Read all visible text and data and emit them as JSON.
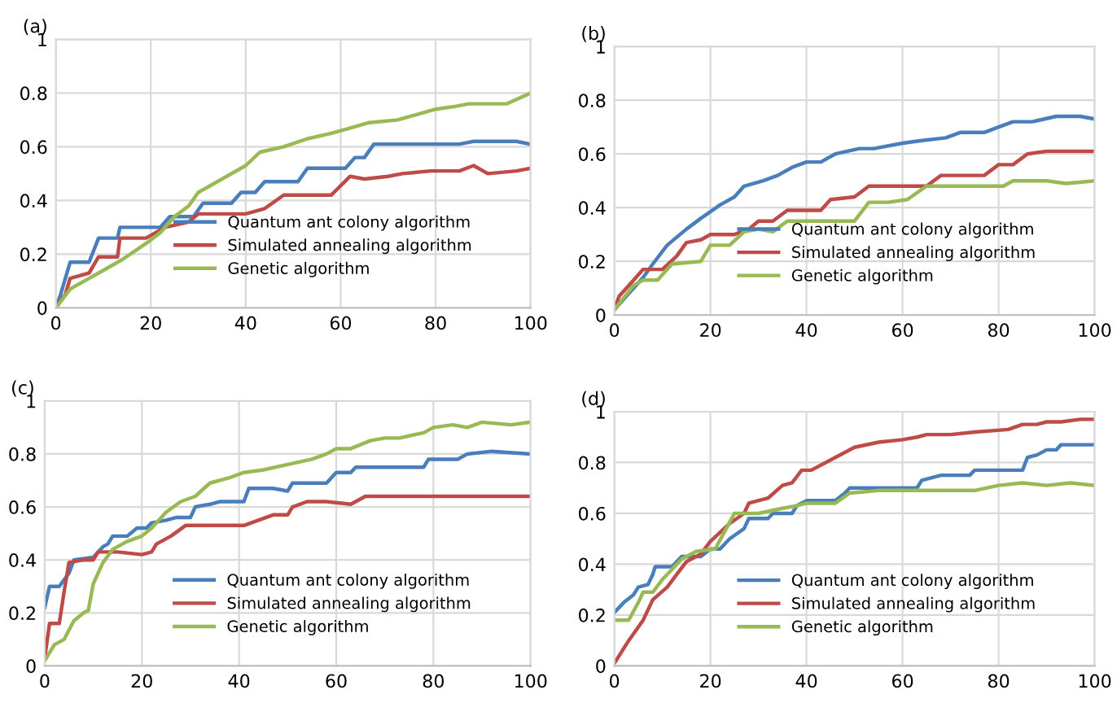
{
  "chart_data": [
    {
      "type": "line",
      "title": "(a)",
      "xlim": [
        0,
        100
      ],
      "ylim": [
        0,
        1
      ],
      "xticks": [
        0,
        20,
        40,
        60,
        80,
        100
      ],
      "yticks": [
        0,
        0.2,
        0.4,
        0.6,
        0.8,
        1
      ],
      "grid": true,
      "legend": "bottom right",
      "series": [
        {
          "name": "Quantum ant colony algorithm",
          "color": "#4a7ebb",
          "x": [
            0,
            1,
            3,
            7,
            9,
            13,
            13.5,
            22,
            24,
            29,
            31,
            37,
            39,
            42,
            44,
            51,
            53,
            58,
            61,
            63,
            65,
            67,
            80,
            85,
            88,
            97,
            100
          ],
          "values": [
            0,
            0.05,
            0.17,
            0.17,
            0.26,
            0.26,
            0.3,
            0.3,
            0.34,
            0.34,
            0.39,
            0.39,
            0.43,
            0.43,
            0.47,
            0.47,
            0.52,
            0.52,
            0.52,
            0.56,
            0.56,
            0.61,
            0.61,
            0.61,
            0.62,
            0.62,
            0.61
          ]
        },
        {
          "name": "Simulated annealing algorithm",
          "color": "#be4b48",
          "x": [
            0,
            2,
            3,
            5,
            7,
            9,
            13,
            13.5,
            19,
            23,
            28,
            30,
            34,
            40,
            44,
            48,
            58,
            62,
            65,
            70,
            73,
            79,
            85,
            88,
            91,
            97,
            100
          ],
          "values": [
            0,
            0.05,
            0.11,
            0.12,
            0.13,
            0.19,
            0.19,
            0.26,
            0.26,
            0.3,
            0.32,
            0.35,
            0.35,
            0.35,
            0.37,
            0.42,
            0.42,
            0.49,
            0.48,
            0.49,
            0.5,
            0.51,
            0.51,
            0.53,
            0.5,
            0.51,
            0.52
          ]
        },
        {
          "name": "Genetic algorithm",
          "color": "#98b954",
          "x": [
            0,
            3,
            7,
            10,
            14,
            19,
            22,
            25,
            28,
            30,
            35,
            40,
            43,
            48,
            53,
            58,
            62,
            66,
            72,
            76,
            80,
            84,
            87,
            95,
            100
          ],
          "values": [
            0,
            0.07,
            0.11,
            0.14,
            0.18,
            0.24,
            0.28,
            0.34,
            0.38,
            0.43,
            0.48,
            0.53,
            0.58,
            0.6,
            0.63,
            0.65,
            0.67,
            0.69,
            0.7,
            0.72,
            0.74,
            0.75,
            0.76,
            0.76,
            0.8
          ]
        }
      ]
    },
    {
      "type": "line",
      "title": "(b)",
      "xlim": [
        0,
        100
      ],
      "ylim": [
        0,
        1
      ],
      "xticks": [
        0,
        20,
        40,
        60,
        80,
        100
      ],
      "yticks": [
        0,
        0.2,
        0.4,
        0.6,
        0.8,
        1
      ],
      "grid": true,
      "legend": "bottom right",
      "series": [
        {
          "name": "Quantum ant colony algorithm",
          "color": "#4a7ebb",
          "x": [
            0,
            3,
            6,
            8,
            11,
            15,
            18,
            22,
            25,
            27,
            31,
            34,
            37,
            40,
            43,
            46,
            51,
            54,
            60,
            64,
            69,
            72,
            77,
            80,
            83,
            87,
            92,
            97,
            100
          ],
          "values": [
            0.02,
            0.08,
            0.14,
            0.19,
            0.26,
            0.32,
            0.36,
            0.41,
            0.44,
            0.48,
            0.5,
            0.52,
            0.55,
            0.57,
            0.57,
            0.6,
            0.62,
            0.62,
            0.64,
            0.65,
            0.66,
            0.68,
            0.68,
            0.7,
            0.72,
            0.72,
            0.74,
            0.74,
            0.73
          ]
        },
        {
          "name": "Simulated annealing algorithm",
          "color": "#be4b48",
          "x": [
            0,
            1,
            3,
            6,
            10,
            13,
            15,
            18,
            20,
            25,
            28,
            30,
            33,
            36,
            43,
            45,
            50,
            53,
            65,
            68,
            77,
            80,
            83,
            86,
            90,
            100
          ],
          "values": [
            0.02,
            0.07,
            0.11,
            0.17,
            0.17,
            0.22,
            0.27,
            0.28,
            0.3,
            0.3,
            0.32,
            0.35,
            0.35,
            0.39,
            0.39,
            0.43,
            0.44,
            0.48,
            0.48,
            0.52,
            0.52,
            0.56,
            0.56,
            0.6,
            0.61,
            0.61
          ]
        },
        {
          "name": "Genetic algorithm",
          "color": "#98b954",
          "x": [
            0,
            4,
            6,
            9,
            12,
            18,
            20,
            24,
            27,
            30,
            33,
            36,
            45,
            50,
            53,
            57,
            61,
            65,
            78,
            81,
            83,
            90,
            94,
            100
          ],
          "values": [
            0.02,
            0.11,
            0.13,
            0.13,
            0.19,
            0.2,
            0.26,
            0.26,
            0.31,
            0.32,
            0.31,
            0.35,
            0.35,
            0.35,
            0.42,
            0.42,
            0.43,
            0.48,
            0.48,
            0.48,
            0.5,
            0.5,
            0.49,
            0.5
          ]
        }
      ]
    },
    {
      "type": "line",
      "title": "(c)",
      "xlim": [
        0,
        100
      ],
      "ylim": [
        0,
        1
      ],
      "xticks": [
        0,
        20,
        40,
        60,
        80,
        100
      ],
      "yticks": [
        0,
        0.2,
        0.4,
        0.6,
        0.8,
        1
      ],
      "grid": true,
      "legend": "bottom right",
      "series": [
        {
          "name": "Quantum ant colony algorithm",
          "color": "#4a7ebb",
          "x": [
            0,
            1,
            3,
            5,
            6,
            10,
            12,
            13,
            14,
            17,
            19,
            21,
            22,
            25,
            27,
            30,
            31,
            34,
            36,
            41,
            42,
            47,
            50,
            51,
            58,
            60,
            63,
            64,
            70,
            78,
            79,
            85,
            87,
            92,
            100
          ],
          "values": [
            0.22,
            0.3,
            0.3,
            0.35,
            0.4,
            0.41,
            0.45,
            0.46,
            0.49,
            0.49,
            0.52,
            0.52,
            0.54,
            0.55,
            0.56,
            0.56,
            0.6,
            0.61,
            0.62,
            0.62,
            0.67,
            0.67,
            0.66,
            0.69,
            0.69,
            0.73,
            0.73,
            0.75,
            0.75,
            0.75,
            0.78,
            0.78,
            0.8,
            0.81,
            0.8
          ]
        },
        {
          "name": "Simulated annealing algorithm",
          "color": "#be4b48",
          "x": [
            0,
            1,
            3,
            4,
            5,
            8,
            10,
            11,
            15,
            20,
            22,
            23,
            26,
            29,
            35,
            41,
            44,
            47,
            50,
            51,
            54,
            58,
            63,
            66,
            80,
            100
          ],
          "values": [
            0.03,
            0.16,
            0.16,
            0.28,
            0.39,
            0.4,
            0.4,
            0.43,
            0.43,
            0.42,
            0.43,
            0.46,
            0.49,
            0.53,
            0.53,
            0.53,
            0.55,
            0.57,
            0.57,
            0.6,
            0.62,
            0.62,
            0.61,
            0.64,
            0.64,
            0.64
          ]
        },
        {
          "name": "Genetic algorithm",
          "color": "#98b954",
          "x": [
            0,
            2,
            4,
            6,
            8,
            9,
            10,
            12,
            14,
            17,
            20,
            22,
            25,
            28,
            31,
            34,
            38,
            41,
            45,
            50,
            55,
            58,
            60,
            63,
            67,
            70,
            73,
            78,
            80,
            84,
            87,
            90,
            96,
            100
          ],
          "values": [
            0.02,
            0.08,
            0.1,
            0.17,
            0.2,
            0.21,
            0.31,
            0.39,
            0.44,
            0.47,
            0.49,
            0.52,
            0.58,
            0.62,
            0.64,
            0.69,
            0.71,
            0.73,
            0.74,
            0.76,
            0.78,
            0.8,
            0.82,
            0.82,
            0.85,
            0.86,
            0.86,
            0.88,
            0.9,
            0.91,
            0.9,
            0.92,
            0.91,
            0.92
          ]
        }
      ]
    },
    {
      "type": "line",
      "title": "(d)",
      "xlim": [
        0,
        100
      ],
      "ylim": [
        0,
        1
      ],
      "xticks": [
        0,
        20,
        40,
        60,
        80,
        100
      ],
      "yticks": [
        0,
        0.2,
        0.4,
        0.6,
        0.8,
        1
      ],
      "grid": true,
      "legend": "bottom right",
      "series": [
        {
          "name": "Quantum ant colony algorithm",
          "color": "#4a7ebb",
          "x": [
            0,
            2,
            4,
            5,
            7,
            8,
            8.5,
            12,
            14,
            18,
            20,
            22,
            24,
            27,
            28,
            32,
            33,
            37,
            38,
            40,
            46,
            48,
            49,
            53,
            63,
            64,
            68,
            74,
            75,
            85,
            86,
            88,
            90,
            92,
            93,
            100
          ],
          "values": [
            0.21,
            0.25,
            0.28,
            0.31,
            0.32,
            0.36,
            0.39,
            0.39,
            0.43,
            0.43,
            0.46,
            0.46,
            0.5,
            0.54,
            0.58,
            0.58,
            0.6,
            0.6,
            0.63,
            0.65,
            0.65,
            0.68,
            0.7,
            0.7,
            0.7,
            0.73,
            0.75,
            0.75,
            0.77,
            0.77,
            0.82,
            0.83,
            0.85,
            0.85,
            0.87,
            0.87
          ]
        },
        {
          "name": "Simulated annealing algorithm",
          "color": "#be4b48",
          "x": [
            0,
            3,
            6,
            8,
            11,
            13,
            15,
            18,
            20,
            24,
            27,
            28,
            32,
            35,
            37,
            39,
            41,
            44,
            48,
            50,
            55,
            60,
            63,
            65,
            70,
            75,
            82,
            85,
            88,
            90,
            93,
            97,
            100
          ],
          "values": [
            0.01,
            0.1,
            0.18,
            0.26,
            0.31,
            0.36,
            0.41,
            0.44,
            0.49,
            0.56,
            0.6,
            0.64,
            0.66,
            0.71,
            0.72,
            0.77,
            0.77,
            0.8,
            0.84,
            0.86,
            0.88,
            0.89,
            0.9,
            0.91,
            0.91,
            0.92,
            0.93,
            0.95,
            0.95,
            0.96,
            0.96,
            0.97,
            0.97
          ]
        },
        {
          "name": "Genetic algorithm",
          "color": "#98b954",
          "x": [
            0,
            3,
            5,
            6,
            8,
            10,
            12,
            14,
            17,
            21,
            23,
            25,
            30,
            35,
            38,
            40,
            46,
            49,
            55,
            70,
            75,
            80,
            85,
            90,
            95,
            100
          ],
          "values": [
            0.18,
            0.18,
            0.25,
            0.29,
            0.29,
            0.34,
            0.38,
            0.42,
            0.45,
            0.46,
            0.53,
            0.6,
            0.6,
            0.62,
            0.63,
            0.64,
            0.64,
            0.68,
            0.69,
            0.69,
            0.69,
            0.71,
            0.72,
            0.71,
            0.72,
            0.71
          ]
        }
      ]
    }
  ]
}
